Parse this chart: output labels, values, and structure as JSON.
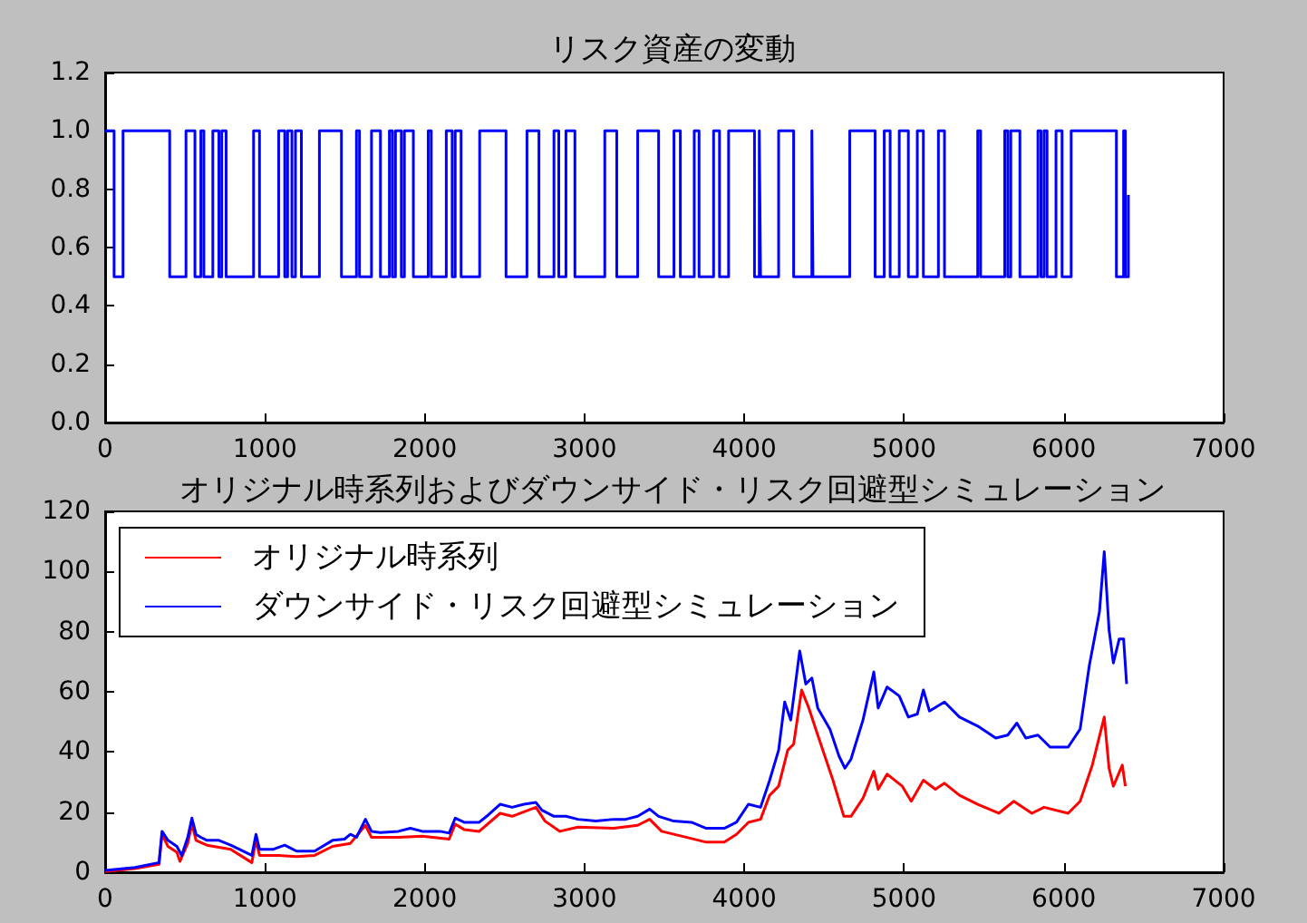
{
  "chart_data": [
    {
      "type": "step",
      "title": "リスク資産の変動",
      "color": "#0000ff",
      "grid": false,
      "legend": false,
      "x": [
        0,
        56,
        112,
        404,
        506,
        562,
        599,
        618,
        674,
        712,
        730,
        757,
        929,
        966,
        1086,
        1124,
        1142,
        1169,
        1191,
        1228,
        1341,
        1479,
        1573,
        1592,
        1667,
        1723,
        1779,
        1798,
        1817,
        1854,
        1873,
        1929,
        2022,
        2041,
        2135,
        2172,
        2191,
        2228,
        2344,
        2509,
        2640,
        2715,
        2809,
        2839,
        2884,
        2940,
        3127,
        3202,
        3333,
        3464,
        3560,
        3600,
        3687,
        3717,
        3808,
        3845,
        3902,
        4064,
        4094,
        4102,
        4215,
        4309,
        4423,
        4430,
        4660,
        4819,
        4876,
        4913,
        4970,
        5027,
        5083,
        5121,
        5215,
        5253,
        5461,
        5479,
        5630,
        5649,
        5668,
        5725,
        5838,
        5857,
        5876,
        5895,
        5951,
        5989,
        6046,
        6329,
        6374,
        6385,
        6404
      ],
      "values": [
        1.0,
        0.5,
        1.0,
        0.5,
        1.0,
        0.5,
        1.0,
        0.5,
        1.0,
        0.5,
        1.0,
        0.5,
        1.0,
        0.5,
        1.0,
        0.5,
        1.0,
        0.5,
        1.0,
        0.5,
        1.0,
        0.5,
        1.0,
        0.5,
        1.0,
        0.5,
        1.0,
        0.5,
        1.0,
        0.5,
        1.0,
        0.5,
        1.0,
        0.5,
        1.0,
        0.5,
        1.0,
        0.5,
        1.0,
        0.5,
        1.0,
        0.5,
        1.0,
        0.5,
        1.0,
        0.5,
        1.0,
        0.5,
        1.0,
        0.5,
        1.0,
        0.5,
        1.0,
        0.5,
        1.0,
        0.5,
        1.0,
        0.5,
        1.0,
        0.5,
        1.0,
        0.5,
        1.0,
        0.5,
        1.0,
        0.5,
        1.0,
        0.5,
        1.0,
        0.5,
        1.0,
        0.5,
        1.0,
        0.5,
        1.0,
        0.5,
        1.0,
        0.5,
        1.0,
        0.5,
        1.0,
        0.5,
        1.0,
        0.5,
        1.0,
        0.5,
        1.0,
        0.5,
        1.0,
        0.5,
        0.78
      ],
      "xlim": [
        0,
        7000
      ],
      "xticks": [
        0,
        1000,
        2000,
        3000,
        4000,
        5000,
        6000,
        7000
      ],
      "ylim": [
        0,
        1.2
      ],
      "yticks": [
        {
          "value": 0,
          "label": "0.0"
        },
        {
          "value": 0.2,
          "label": "0.2"
        },
        {
          "value": 0.4,
          "label": "0.4"
        },
        {
          "value": 0.6,
          "label": "0.6"
        },
        {
          "value": 0.8,
          "label": "0.8"
        },
        {
          "value": 1.0,
          "label": "1.0"
        },
        {
          "value": 1.2,
          "label": "1.2"
        }
      ]
    },
    {
      "type": "line",
      "title": "オリジナル時系列およびダウンサイド・リスク回避型シミュレーション",
      "grid": false,
      "legend": "top left",
      "xlim": [
        0,
        7000
      ],
      "xticks": [
        0,
        1000,
        2000,
        3000,
        4000,
        5000,
        6000,
        7000
      ],
      "ylim": [
        0,
        120
      ],
      "yticks": [
        0,
        20,
        40,
        60,
        80,
        100,
        120
      ],
      "series": [
        {
          "name": "オリジナル時系列",
          "color": "#ff0000",
          "x": [
            0,
            187,
            337,
            356,
            393,
            449,
            468,
            517,
            543,
            569,
            637,
            786,
            918,
            944,
            966,
            1086,
            1198,
            1311,
            1423,
            1535,
            1629,
            1667,
            1835,
            1985,
            2153,
            2191,
            2247,
            2341,
            2472,
            2547,
            2696,
            2753,
            2846,
            2959,
            3183,
            3333,
            3408,
            3483,
            3670,
            3762,
            3875,
            3951,
            4026,
            4102,
            4159,
            4215,
            4272,
            4309,
            4359,
            4404,
            4460,
            4555,
            4623,
            4668,
            4743,
            4811,
            4838,
            4894,
            4989,
            5045,
            5121,
            5196,
            5253,
            5347,
            5461,
            5593,
            5687,
            5800,
            5876,
            6027,
            6102,
            6178,
            6253,
            6283,
            6310,
            6366,
            6385
          ],
          "values": [
            0.2,
            1.2,
            2.6,
            12.6,
            8.6,
            6.6,
            3.6,
            9.6,
            16.2,
            10.6,
            9,
            7.6,
            3.2,
            10.6,
            5.6,
            5.6,
            5.2,
            5.6,
            8.6,
            9.6,
            15.6,
            11.6,
            11.6,
            12,
            11,
            16,
            14.2,
            13.6,
            19.6,
            18.6,
            21.6,
            17,
            13.6,
            15,
            14.6,
            15.6,
            17.6,
            13.6,
            11.2,
            10,
            10,
            12.6,
            16.6,
            17.6,
            25.6,
            28.6,
            40.6,
            42.6,
            60.6,
            54.6,
            45.6,
            30.6,
            18.6,
            18.6,
            24.6,
            33.6,
            27.6,
            32.6,
            28.6,
            23.6,
            30.6,
            27.6,
            29.6,
            25.6,
            22.6,
            19.6,
            23.6,
            19.6,
            21.6,
            19.6,
            23.6,
            35.6,
            51.6,
            34.6,
            28.6,
            35.6,
            28.6
          ]
        },
        {
          "name": "ダウンサイド・リスク回避型シミュレーション",
          "color": "#0000ff",
          "x": [
            0,
            187,
            337,
            356,
            393,
            449,
            479,
            517,
            543,
            569,
            599,
            637,
            712,
            786,
            880,
            918,
            944,
            966,
            1049,
            1124,
            1198,
            1311,
            1423,
            1498,
            1535,
            1573,
            1629,
            1667,
            1723,
            1835,
            1910,
            1985,
            2097,
            2153,
            2191,
            2247,
            2341,
            2397,
            2472,
            2547,
            2622,
            2696,
            2734,
            2809,
            2884,
            2959,
            3071,
            3183,
            3258,
            3333,
            3408,
            3464,
            3558,
            3670,
            3762,
            3875,
            3951,
            4026,
            4102,
            4159,
            4215,
            4253,
            4291,
            4347,
            4385,
            4423,
            4460,
            4536,
            4593,
            4630,
            4668,
            4743,
            4811,
            4838,
            4894,
            4970,
            5027,
            5083,
            5121,
            5159,
            5253,
            5347,
            5461,
            5574,
            5649,
            5706,
            5762,
            5838,
            5914,
            6027,
            6102,
            6159,
            6223,
            6253,
            6283,
            6310,
            6347,
            6374,
            6393
          ],
          "values": [
            0.6,
            1.6,
            3.2,
            13.6,
            10.6,
            8.6,
            5.6,
            11.6,
            18,
            12.6,
            11.6,
            10.6,
            10.6,
            9,
            6.6,
            5.6,
            12.6,
            7.6,
            7.6,
            9,
            7,
            7,
            10.6,
            11,
            12.6,
            11.6,
            17.6,
            13.6,
            13.2,
            13.6,
            14.6,
            13.6,
            13.6,
            13,
            18,
            16.6,
            16.6,
            19,
            22.6,
            21.6,
            22.6,
            23.2,
            20.6,
            18.6,
            18.6,
            17.6,
            17,
            17.6,
            17.6,
            18.6,
            21,
            18.6,
            17,
            16.6,
            14.6,
            14.6,
            16.6,
            22.6,
            21.6,
            30.6,
            40.6,
            56.6,
            50.6,
            73.6,
            62.6,
            64.6,
            54.6,
            47.6,
            38.6,
            34.6,
            37.6,
            50.6,
            66.6,
            54.6,
            61.6,
            58.6,
            51.6,
            52.6,
            60.6,
            53.6,
            56.6,
            51.6,
            48.6,
            44.6,
            45.6,
            49.6,
            44.6,
            45.6,
            41.6,
            41.6,
            47.6,
            68.6,
            86.6,
            106.6,
            80.6,
            69.6,
            77.6,
            77.6,
            62.6
          ]
        }
      ]
    }
  ]
}
